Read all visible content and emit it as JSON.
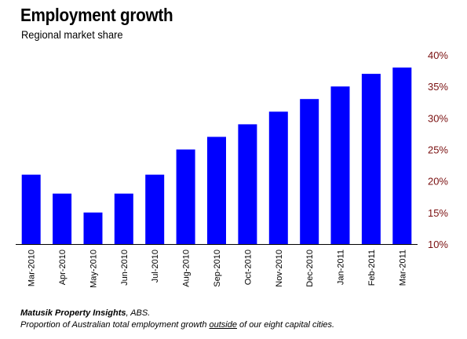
{
  "chart_data": {
    "type": "bar",
    "title": "Employment growth",
    "subtitle": "Regional market share",
    "categories": [
      "Mar-2010",
      "Apr-2010",
      "May-2010",
      "Jun-2010",
      "Jul-2010",
      "Aug-2010",
      "Sep-2010",
      "Oct-2010",
      "Nov-2010",
      "Dec-2010",
      "Jan-2011",
      "Feb-2011",
      "Mar-2011"
    ],
    "values": [
      21,
      18,
      15,
      18,
      21,
      25,
      27,
      29,
      31,
      33,
      35,
      37,
      38
    ],
    "y_ticks": [
      "10%",
      "15%",
      "20%",
      "25%",
      "30%",
      "35%",
      "40%"
    ],
    "ylim": [
      10,
      40
    ],
    "y_axis_side": "right",
    "bar_color": "#0000ff",
    "y_label_color": "#7a1010",
    "grid": false
  },
  "footer": {
    "source_bold": "Matusik Property Insights",
    "source_rest": ", ABS.",
    "note_before": "Proportion of Australian total employment growth ",
    "note_underlined": "outside",
    "note_after": " of our eight capital cities."
  }
}
